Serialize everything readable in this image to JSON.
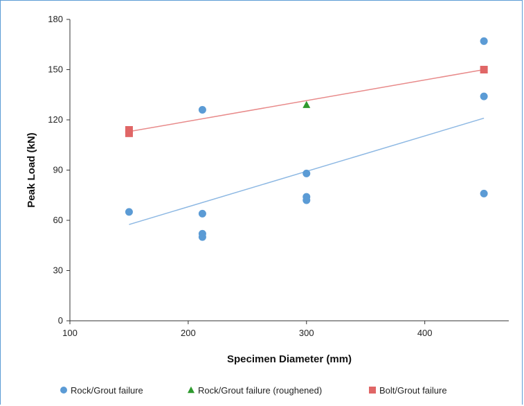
{
  "chart_data": {
    "type": "scatter",
    "title": "",
    "xlabel": "Specimen Diameter (mm)",
    "ylabel": "Peak Load (kN)",
    "xlim": [
      100,
      450
    ],
    "ylim": [
      0,
      180
    ],
    "xticks": [
      100,
      200,
      300,
      400
    ],
    "yticks": [
      0,
      30,
      60,
      90,
      120,
      150,
      180
    ],
    "grid": false,
    "legend_position": "bottom",
    "series": [
      {
        "name": "Rock/Grout failure",
        "marker": "circle",
        "color": "#5b9bd5",
        "points": [
          {
            "x": 150,
            "y": 65
          },
          {
            "x": 212,
            "y": 126
          },
          {
            "x": 212,
            "y": 64
          },
          {
            "x": 212,
            "y": 52
          },
          {
            "x": 212,
            "y": 50
          },
          {
            "x": 300,
            "y": 88
          },
          {
            "x": 300,
            "y": 74
          },
          {
            "x": 300,
            "y": 72
          },
          {
            "x": 450,
            "y": 167
          },
          {
            "x": 450,
            "y": 134
          },
          {
            "x": 450,
            "y": 76
          }
        ],
        "trendline": {
          "x": [
            150,
            450
          ],
          "y": [
            57.5,
            121
          ]
        }
      },
      {
        "name": "Rock/Grout failure (roughened)",
        "marker": "triangle",
        "color": "#2e9a2e",
        "points": [
          {
            "x": 300,
            "y": 129
          }
        ]
      },
      {
        "name": "Bolt/Grout failure",
        "marker": "square",
        "color": "#e06666",
        "points": [
          {
            "x": 150,
            "y": 114
          },
          {
            "x": 150,
            "y": 112
          },
          {
            "x": 450,
            "y": 150
          }
        ],
        "trendline": {
          "x": [
            150,
            450
          ],
          "y": [
            113,
            150
          ]
        }
      }
    ]
  }
}
